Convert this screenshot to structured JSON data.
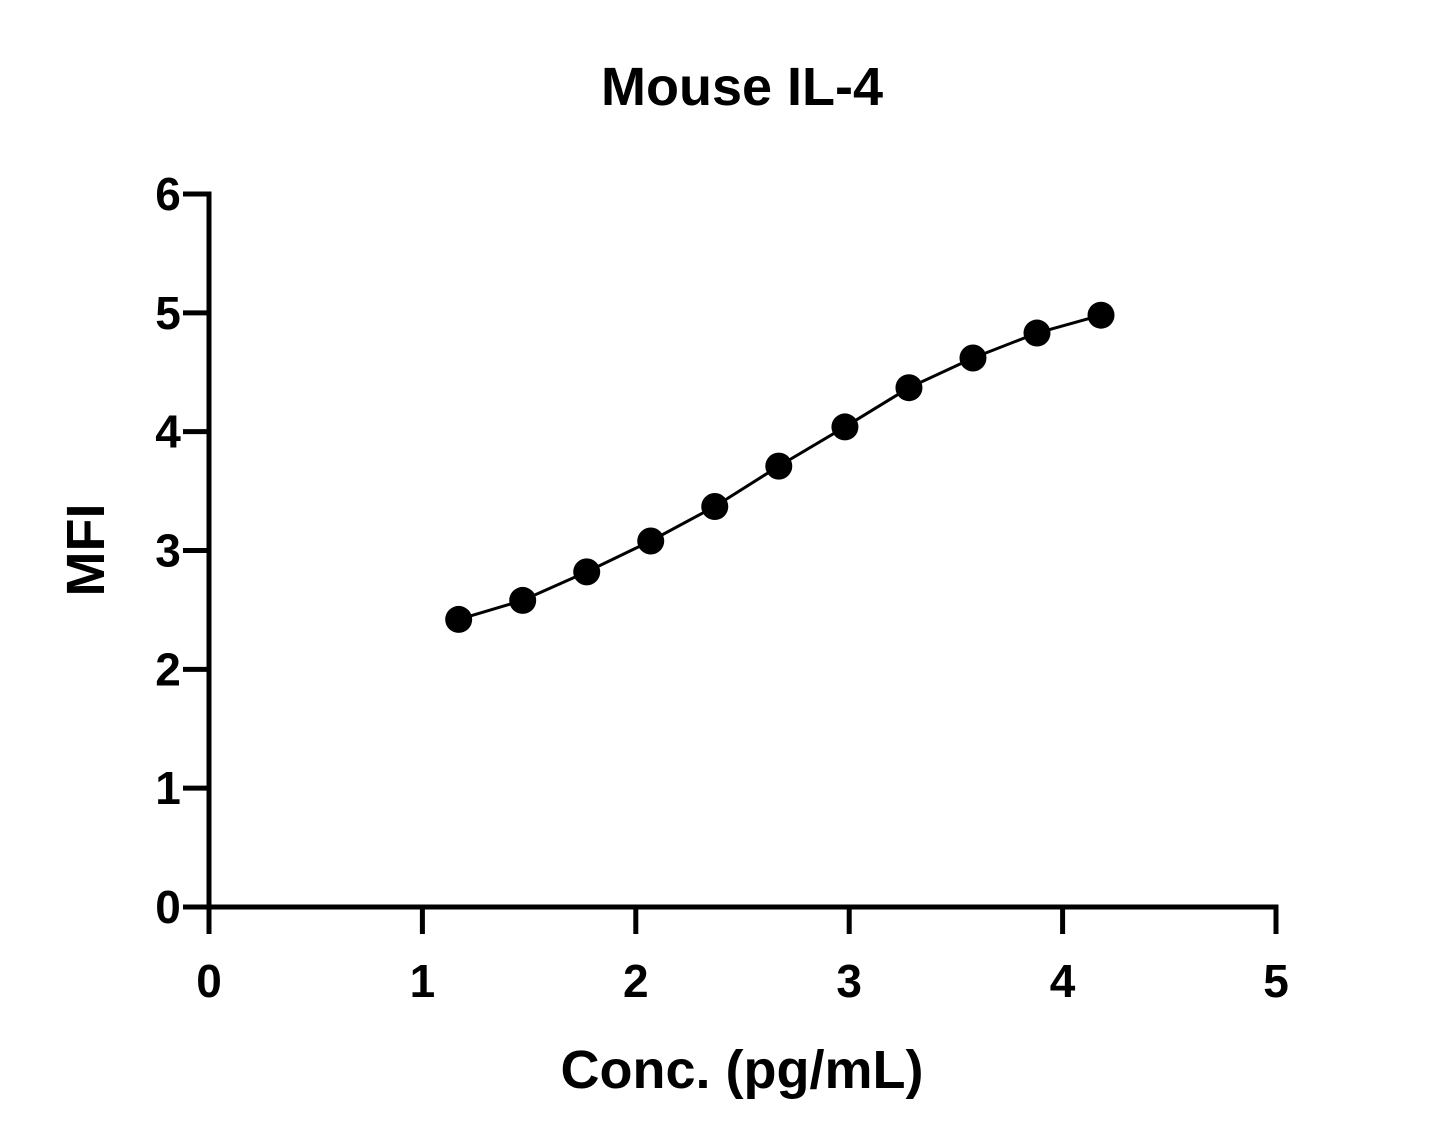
{
  "chart_data": {
    "type": "line",
    "title": "Mouse IL-4",
    "xlabel": "Conc. (pg/mL)",
    "ylabel": "MFI",
    "xlim": [
      0,
      5
    ],
    "ylim": [
      0,
      6
    ],
    "xticks": [
      "0",
      "1",
      "2",
      "3",
      "4",
      "5"
    ],
    "yticks": [
      "0",
      "1",
      "2",
      "3",
      "4",
      "5",
      "6"
    ],
    "grid": false,
    "legend": "none",
    "series": [
      {
        "x": [
          1.17,
          1.47,
          1.77,
          2.07,
          2.37,
          2.67,
          2.98,
          3.28,
          3.58,
          3.88,
          4.18
        ],
        "y": [
          2.42,
          2.58,
          2.82,
          3.08,
          3.37,
          3.71,
          4.04,
          4.37,
          4.62,
          4.83,
          4.98
        ],
        "color": "#000000"
      }
    ]
  }
}
